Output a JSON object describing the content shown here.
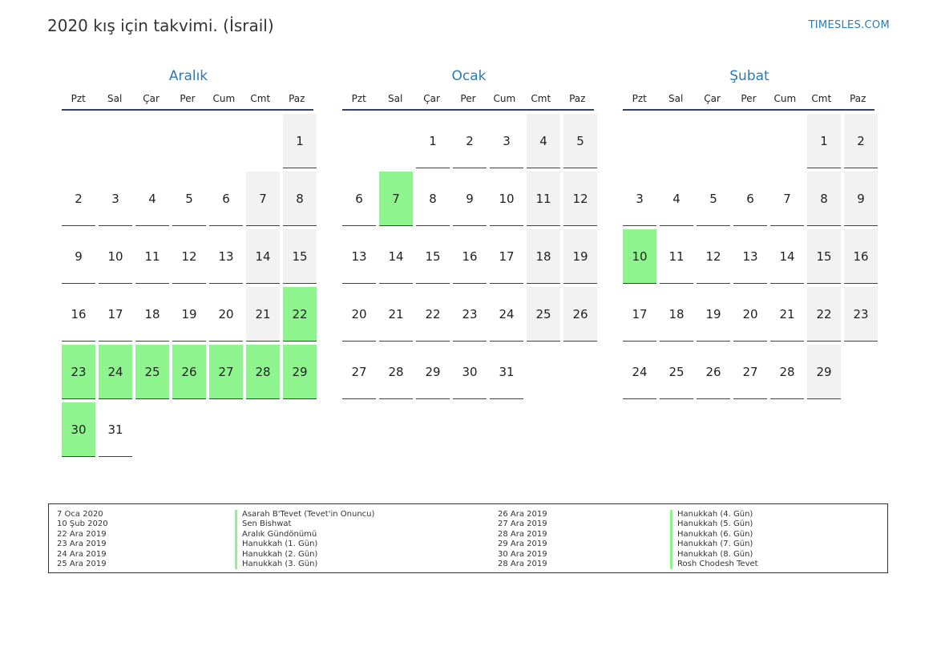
{
  "header": {
    "title": "2020 kış için takvimi. (İsrail)",
    "site": "TIMESLES.COM"
  },
  "colors": {
    "accent": "#2a7ab8",
    "holiday": "#8ef58e",
    "weekend": "#f2f2f2"
  },
  "months": [
    {
      "name": "Aralık",
      "weekdays": [
        "Pzt",
        "Sal",
        "Çar",
        "Per",
        "Cum",
        "Cmt",
        "Paz"
      ],
      "offset": 6,
      "days": 31,
      "holidays": [
        22,
        23,
        24,
        25,
        26,
        27,
        28,
        29,
        30
      ]
    },
    {
      "name": "Ocak",
      "weekdays": [
        "Pzt",
        "Sal",
        "Çar",
        "Per",
        "Cum",
        "Cmt",
        "Paz"
      ],
      "offset": 2,
      "days": 31,
      "holidays": [
        7
      ]
    },
    {
      "name": "Şubat",
      "weekdays": [
        "Pzt",
        "Sal",
        "Çar",
        "Per",
        "Cum",
        "Cmt",
        "Paz"
      ],
      "offset": 5,
      "days": 29,
      "holidays": [
        10
      ]
    }
  ],
  "legend": [
    {
      "date": "7 Oca 2020",
      "name": "Asarah B'Tevet (Tevet'in Onuncu)"
    },
    {
      "date": "10 Şub 2020",
      "name": "Sen Bishwat"
    },
    {
      "date": "22 Ara 2019",
      "name": "Aralık Gündönümü"
    },
    {
      "date": "23 Ara 2019",
      "name": "Hanukkah (1. Gün)"
    },
    {
      "date": "24 Ara 2019",
      "name": "Hanukkah (2. Gün)"
    },
    {
      "date": "25 Ara 2019",
      "name": "Hanukkah (3. Gün)"
    },
    {
      "date": "26 Ara 2019",
      "name": "Hanukkah (4. Gün)"
    },
    {
      "date": "27 Ara 2019",
      "name": "Hanukkah (5. Gün)"
    },
    {
      "date": "28 Ara 2019",
      "name": "Hanukkah (6. Gün)"
    },
    {
      "date": "29 Ara 2019",
      "name": "Hanukkah (7. Gün)"
    },
    {
      "date": "30 Ara 2019",
      "name": "Hanukkah (8. Gün)"
    },
    {
      "date": "28 Ara 2019",
      "name": "Rosh Chodesh Tevet"
    }
  ]
}
